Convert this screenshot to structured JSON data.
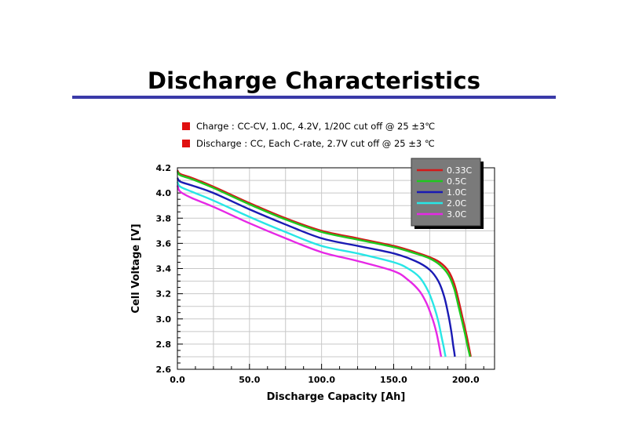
{
  "slide": {
    "title": "Discharge Characteristics",
    "notes": [
      {
        "text": "Charge : CC-CV, 1.0C,  4.2V, 1/20C cut off @ 25 ±3℃",
        "bullet_color": "#e01010"
      },
      {
        "text": "Discharge : CC, Each C-rate, 2.7V cut off  @ 25 ±3 ℃",
        "bullet_color": "#e01010"
      }
    ]
  },
  "chart_data": {
    "type": "line",
    "title": "",
    "xlabel": "Discharge Capacity [Ah]",
    "ylabel": "Cell Voltage [V]",
    "xlim": [
      0,
      220
    ],
    "ylim": [
      2.6,
      4.2
    ],
    "xticks": [
      "0.0",
      "50.0",
      "100.0",
      "150.0",
      "200.0"
    ],
    "yticks": [
      "2.6",
      "2.8",
      "3.0",
      "3.2",
      "3.4",
      "3.6",
      "3.8",
      "4.0",
      "4.2"
    ],
    "grid": true,
    "legend_position": "top-right",
    "plot_background": "#ffffff",
    "legend_background": "#7a7a7a",
    "series": [
      {
        "name": "0.33C",
        "color": "#d21a1a",
        "x": [
          0,
          2,
          10,
          25,
          50,
          75,
          100,
          125,
          150,
          165,
          175,
          182,
          188,
          192,
          195,
          198,
          200,
          201.5,
          202.5,
          203.5
        ],
        "y": [
          4.18,
          4.15,
          4.12,
          4.05,
          3.92,
          3.8,
          3.7,
          3.64,
          3.58,
          3.53,
          3.49,
          3.45,
          3.38,
          3.28,
          3.15,
          3.0,
          2.9,
          2.82,
          2.76,
          2.7
        ]
      },
      {
        "name": "0.5C",
        "color": "#1ec81e",
        "x": [
          0,
          2,
          10,
          25,
          50,
          75,
          100,
          125,
          150,
          165,
          175,
          182,
          188,
          192,
          195,
          197.5,
          199.5,
          201,
          202,
          203
        ],
        "y": [
          4.17,
          4.14,
          4.11,
          4.04,
          3.91,
          3.79,
          3.69,
          3.63,
          3.57,
          3.52,
          3.48,
          3.43,
          3.35,
          3.24,
          3.1,
          2.98,
          2.88,
          2.8,
          2.75,
          2.7
        ]
      },
      {
        "name": "1.0C",
        "color": "#1a1ab4",
        "x": [
          0,
          2,
          10,
          25,
          50,
          75,
          100,
          125,
          150,
          165,
          175,
          181,
          185,
          188,
          190,
          191.2,
          192,
          192.5
        ],
        "y": [
          4.12,
          4.09,
          4.06,
          4.0,
          3.87,
          3.75,
          3.64,
          3.58,
          3.52,
          3.46,
          3.39,
          3.3,
          3.18,
          3.03,
          2.9,
          2.8,
          2.74,
          2.7
        ]
      },
      {
        "name": "2.0C",
        "color": "#28e6e6",
        "x": [
          0,
          2,
          10,
          25,
          50,
          75,
          100,
          125,
          150,
          160,
          168,
          174,
          178,
          181,
          183,
          184.5,
          185.5,
          186
        ],
        "y": [
          4.09,
          4.05,
          4.01,
          3.94,
          3.81,
          3.69,
          3.58,
          3.52,
          3.45,
          3.4,
          3.33,
          3.22,
          3.1,
          2.98,
          2.87,
          2.79,
          2.73,
          2.7
        ]
      },
      {
        "name": "3.0C",
        "color": "#e628e6",
        "x": [
          0,
          2,
          10,
          25,
          50,
          75,
          100,
          125,
          150,
          160,
          168,
          173,
          177,
          179.5,
          181,
          182,
          182.6,
          183
        ],
        "y": [
          4.06,
          4.01,
          3.96,
          3.89,
          3.76,
          3.64,
          3.53,
          3.46,
          3.38,
          3.31,
          3.22,
          3.12,
          3.0,
          2.9,
          2.82,
          2.76,
          2.72,
          2.7
        ]
      }
    ]
  }
}
